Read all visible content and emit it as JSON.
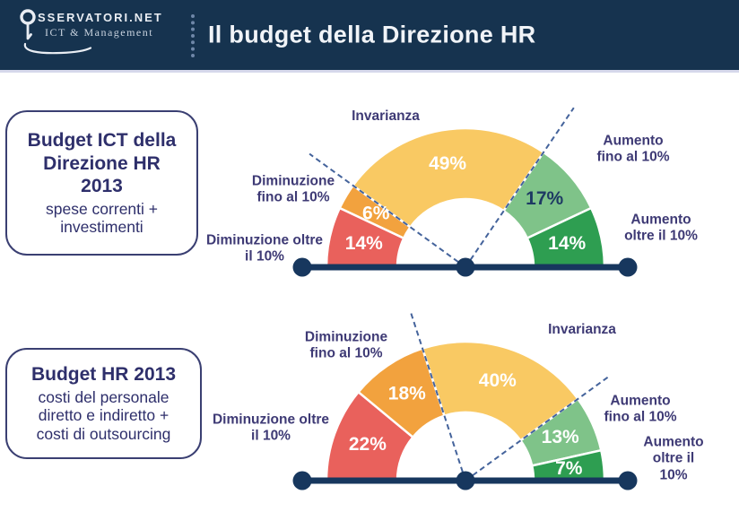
{
  "header": {
    "logo": {
      "line1": "SSERVATORI.NET",
      "line2": "ICT & Management",
      "icon": "key-icon"
    },
    "title": "Il budget della Direzione HR"
  },
  "info_boxes": [
    {
      "title": "Budget ICT della\nDirezione HR\n2013",
      "subtitle": "spese correnti +\ninvestimenti"
    },
    {
      "title": "Budget HR 2013",
      "subtitle": "costi del personale\ndiretto e indiretto +\ncosti di outsourcing"
    }
  ],
  "palette": {
    "red": "#E9615C",
    "orange": "#F2A23E",
    "yellow": "#F9C963",
    "light_green": "#7FC389",
    "dark_green": "#2E9E51",
    "navy": "#17375E",
    "dashed_blue": "#44639B",
    "label_text": "#3E3A75",
    "header_bg": "#16334F",
    "header_text": "#F1F4F8",
    "box_text": "#2E2F6B",
    "box_border": "#3A3F72"
  },
  "chart_data": [
    {
      "type": "pie",
      "subtype": "half-donut-gauge",
      "title": "Budget ICT della Direzione HR 2013 - spese correnti + investimenti",
      "unit": "%",
      "angle_span_deg": 180,
      "start_side": "left",
      "categories": [
        "Diminuzione oltre il 10%",
        "Diminuzione fino al 10%",
        "Invarianza",
        "Aumento fino al 10%",
        "Aumento oltre il 10%"
      ],
      "values": [
        14,
        6,
        49,
        17,
        14
      ],
      "colors": [
        "#E9615C",
        "#F2A23E",
        "#F9C963",
        "#7FC389",
        "#2E9E51"
      ],
      "value_label_colors": [
        "#FFFFFF",
        "#FFFFFF",
        "#FFFFFF",
        "#1E3A63",
        "#FFFFFF"
      ],
      "dashed_markers_at_pct": [
        20,
        69
      ],
      "labels_display": [
        "Diminuzione oltre\nil 10%",
        "Diminuzione\nfino al 10%",
        "Invarianza",
        "Aumento\nfino al 10%",
        "Aumento\noltre il 10%"
      ]
    },
    {
      "type": "pie",
      "subtype": "half-donut-gauge",
      "title": "Budget HR 2013 - costi del personale diretto e indiretto + costi di outsourcing",
      "unit": "%",
      "angle_span_deg": 180,
      "start_side": "left",
      "categories": [
        "Diminuzione oltre il 10%",
        "Diminuzione fino al 10%",
        "Invarianza",
        "Aumento fino al 10%",
        "Aumento oltre il 10%"
      ],
      "values": [
        22,
        18,
        40,
        13,
        7
      ],
      "colors": [
        "#E9615C",
        "#F2A23E",
        "#F9C963",
        "#7FC389",
        "#2E9E51"
      ],
      "value_label_colors": [
        "#FFFFFF",
        "#FFFFFF",
        "#FFFFFF",
        "#FFFFFF",
        "#FFFFFF"
      ],
      "dashed_markers_at_pct": [
        40,
        80
      ],
      "labels_display": [
        "Diminuzione oltre\nil 10%",
        "Diminuzione\nfino al 10%",
        "Invarianza",
        "Aumento\nfino al 10%",
        "Aumento\noltre il 10%"
      ]
    }
  ]
}
